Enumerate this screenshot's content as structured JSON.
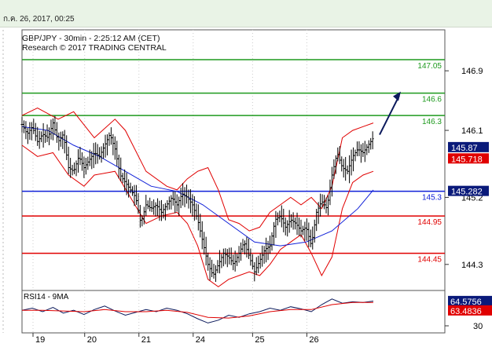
{
  "header": {
    "date_stamp": "ก.ค. 26, 2017, 00:25",
    "title": "GBP/JPY - 30min - 2:25:12 AM (CET)",
    "research": "Research © 2017 TRADING CENTRAL"
  },
  "colors": {
    "green": "#1e9a1e",
    "red": "#e00000",
    "blue": "#1020d8",
    "navy": "#0c1a5c",
    "price": "#000000",
    "tag_current_bg": "#0a1a7a",
    "tag_red_bg": "#e00000"
  },
  "chart_data": [
    {
      "type": "candlestick",
      "title": "GBP/JPY - 30min - 2:25:12 AM (CET)",
      "y_axis_ticks": [
        144.3,
        145.2,
        146.1,
        146.9
      ],
      "ylim": [
        143.95,
        147.45
      ],
      "x_axis_ticks": [
        "19",
        "20",
        "21",
        "24",
        "25",
        "26"
      ],
      "current_price": 145.87,
      "price_tags": [
        {
          "value": "145.87",
          "role": "current"
        },
        {
          "value": "145.718",
          "role": "moving-average"
        },
        {
          "value": "145.282",
          "role": "pivot"
        }
      ],
      "levels": [
        {
          "label": "147.05",
          "value": 147.05,
          "color": "green"
        },
        {
          "label": "146.6",
          "value": 146.6,
          "color": "green"
        },
        {
          "label": "146.3",
          "value": 146.3,
          "color": "green"
        },
        {
          "label": "145.3",
          "value": 145.282,
          "color": "blue"
        },
        {
          "label": "144.95",
          "value": 144.95,
          "color": "red"
        },
        {
          "label": "144.45",
          "value": 144.45,
          "color": "red"
        }
      ],
      "close_path": [
        [
          0,
          146.18
        ],
        [
          4,
          146.05
        ],
        [
          8,
          146.15
        ],
        [
          12,
          145.95
        ],
        [
          16,
          146.05
        ],
        [
          20,
          146.0
        ],
        [
          24,
          146.2
        ],
        [
          28,
          145.95
        ],
        [
          32,
          146.05
        ],
        [
          36,
          145.6
        ],
        [
          40,
          145.55
        ],
        [
          44,
          145.75
        ],
        [
          48,
          145.6
        ],
        [
          52,
          145.7
        ],
        [
          56,
          145.8
        ],
        [
          60,
          145.75
        ],
        [
          64,
          145.9
        ],
        [
          68,
          146.05
        ],
        [
          72,
          145.85
        ],
        [
          76,
          145.5
        ],
        [
          80,
          145.4
        ],
        [
          84,
          145.3
        ],
        [
          88,
          145.2
        ],
        [
          92,
          144.85
        ],
        [
          96,
          145.1
        ],
        [
          100,
          145.05
        ],
        [
          104,
          145.1
        ],
        [
          108,
          145.0
        ],
        [
          112,
          145.1
        ],
        [
          116,
          145.2
        ],
        [
          120,
          145.1
        ],
        [
          124,
          145.25
        ],
        [
          128,
          145.2
        ],
        [
          132,
          145.1
        ],
        [
          136,
          144.9
        ],
        [
          140,
          144.6
        ],
        [
          144,
          144.3
        ],
        [
          148,
          144.15
        ],
        [
          152,
          144.3
        ],
        [
          156,
          144.45
        ],
        [
          160,
          144.4
        ],
        [
          164,
          144.3
        ],
        [
          168,
          144.45
        ],
        [
          172,
          144.6
        ],
        [
          176,
          144.4
        ],
        [
          180,
          144.2
        ],
        [
          184,
          144.35
        ],
        [
          188,
          144.5
        ],
        [
          192,
          144.55
        ],
        [
          196,
          144.9
        ],
        [
          200,
          144.95
        ],
        [
          204,
          144.8
        ],
        [
          208,
          144.9
        ],
        [
          212,
          144.85
        ],
        [
          216,
          144.75
        ],
        [
          220,
          144.8
        ],
        [
          224,
          144.55
        ],
        [
          228,
          145.0
        ],
        [
          232,
          145.15
        ],
        [
          236,
          145.05
        ],
        [
          240,
          145.5
        ],
        [
          244,
          145.8
        ],
        [
          248,
          145.6
        ],
        [
          252,
          145.55
        ],
        [
          256,
          145.75
        ],
        [
          260,
          145.85
        ],
        [
          264,
          145.8
        ],
        [
          268,
          145.9
        ],
        [
          272,
          146.0
        ]
      ],
      "ma_path": [
        [
          0,
          146.15
        ],
        [
          20,
          146.1
        ],
        [
          40,
          145.9
        ],
        [
          60,
          145.75
        ],
        [
          80,
          145.55
        ],
        [
          100,
          145.35
        ],
        [
          120,
          145.28
        ],
        [
          140,
          145.1
        ],
        [
          160,
          144.85
        ],
        [
          180,
          144.6
        ],
        [
          200,
          144.55
        ],
        [
          220,
          144.6
        ],
        [
          240,
          144.75
        ],
        [
          260,
          145.05
        ],
        [
          272,
          145.3
        ]
      ],
      "band_upper": [
        [
          0,
          146.3
        ],
        [
          12,
          146.4
        ],
        [
          28,
          146.25
        ],
        [
          40,
          146.35
        ],
        [
          56,
          146.0
        ],
        [
          72,
          146.25
        ],
        [
          80,
          146.1
        ],
        [
          96,
          145.55
        ],
        [
          112,
          145.35
        ],
        [
          120,
          145.3
        ],
        [
          128,
          145.45
        ],
        [
          136,
          145.55
        ],
        [
          144,
          145.6
        ],
        [
          152,
          145.3
        ],
        [
          160,
          144.9
        ],
        [
          168,
          144.85
        ],
        [
          176,
          144.75
        ],
        [
          184,
          144.8
        ],
        [
          192,
          145.0
        ],
        [
          200,
          145.1
        ],
        [
          208,
          145.2
        ],
        [
          216,
          145.1
        ],
        [
          224,
          145.2
        ],
        [
          232,
          145.05
        ],
        [
          240,
          145.35
        ],
        [
          248,
          146.0
        ],
        [
          256,
          146.1
        ],
        [
          264,
          146.15
        ],
        [
          272,
          146.2
        ]
      ],
      "band_lower": [
        [
          0,
          145.9
        ],
        [
          12,
          145.75
        ],
        [
          24,
          145.8
        ],
        [
          36,
          145.5
        ],
        [
          48,
          145.35
        ],
        [
          56,
          145.5
        ],
        [
          72,
          145.55
        ],
        [
          84,
          145.2
        ],
        [
          96,
          144.85
        ],
        [
          108,
          144.95
        ],
        [
          120,
          145.0
        ],
        [
          128,
          144.85
        ],
        [
          136,
          144.55
        ],
        [
          144,
          144.1
        ],
        [
          152,
          144.0
        ],
        [
          160,
          144.1
        ],
        [
          168,
          144.15
        ],
        [
          176,
          144.2
        ],
        [
          184,
          144.15
        ],
        [
          192,
          144.3
        ],
        [
          200,
          144.5
        ],
        [
          208,
          144.6
        ],
        [
          216,
          144.7
        ],
        [
          224,
          144.45
        ],
        [
          232,
          144.15
        ],
        [
          240,
          144.4
        ],
        [
          248,
          145.05
        ],
        [
          256,
          145.4
        ],
        [
          264,
          145.5
        ],
        [
          272,
          145.55
        ]
      ],
      "forecast_arrow": {
        "from": 146.0,
        "to": 146.6
      }
    },
    {
      "type": "line",
      "title": "RSI14 - 9MA",
      "y_axis_ticks": [
        30
      ],
      "ylim": [
        20,
        80
      ],
      "values": {
        "rsi": "64.5756",
        "ma": "63.4836"
      },
      "rsi_path": [
        [
          0,
          52
        ],
        [
          8,
          55
        ],
        [
          16,
          50
        ],
        [
          24,
          56
        ],
        [
          32,
          48
        ],
        [
          40,
          52
        ],
        [
          48,
          46
        ],
        [
          56,
          53
        ],
        [
          64,
          58
        ],
        [
          72,
          51
        ],
        [
          80,
          45
        ],
        [
          88,
          49
        ],
        [
          96,
          53
        ],
        [
          104,
          50
        ],
        [
          112,
          55
        ],
        [
          120,
          52
        ],
        [
          128,
          47
        ],
        [
          136,
          40
        ],
        [
          144,
          34
        ],
        [
          152,
          38
        ],
        [
          160,
          45
        ],
        [
          168,
          42
        ],
        [
          176,
          47
        ],
        [
          184,
          50
        ],
        [
          192,
          55
        ],
        [
          200,
          52
        ],
        [
          208,
          57
        ],
        [
          216,
          54
        ],
        [
          224,
          50
        ],
        [
          232,
          60
        ],
        [
          240,
          68
        ],
        [
          248,
          62
        ],
        [
          256,
          64
        ],
        [
          264,
          63
        ],
        [
          272,
          65
        ]
      ],
      "ma_path": [
        [
          0,
          52
        ],
        [
          16,
          52
        ],
        [
          32,
          51
        ],
        [
          48,
          50
        ],
        [
          64,
          53
        ],
        [
          80,
          50
        ],
        [
          96,
          50
        ],
        [
          112,
          52
        ],
        [
          128,
          49
        ],
        [
          144,
          42
        ],
        [
          160,
          41
        ],
        [
          176,
          44
        ],
        [
          192,
          50
        ],
        [
          208,
          53
        ],
        [
          224,
          53
        ],
        [
          240,
          60
        ],
        [
          256,
          63
        ],
        [
          272,
          63
        ]
      ]
    }
  ]
}
